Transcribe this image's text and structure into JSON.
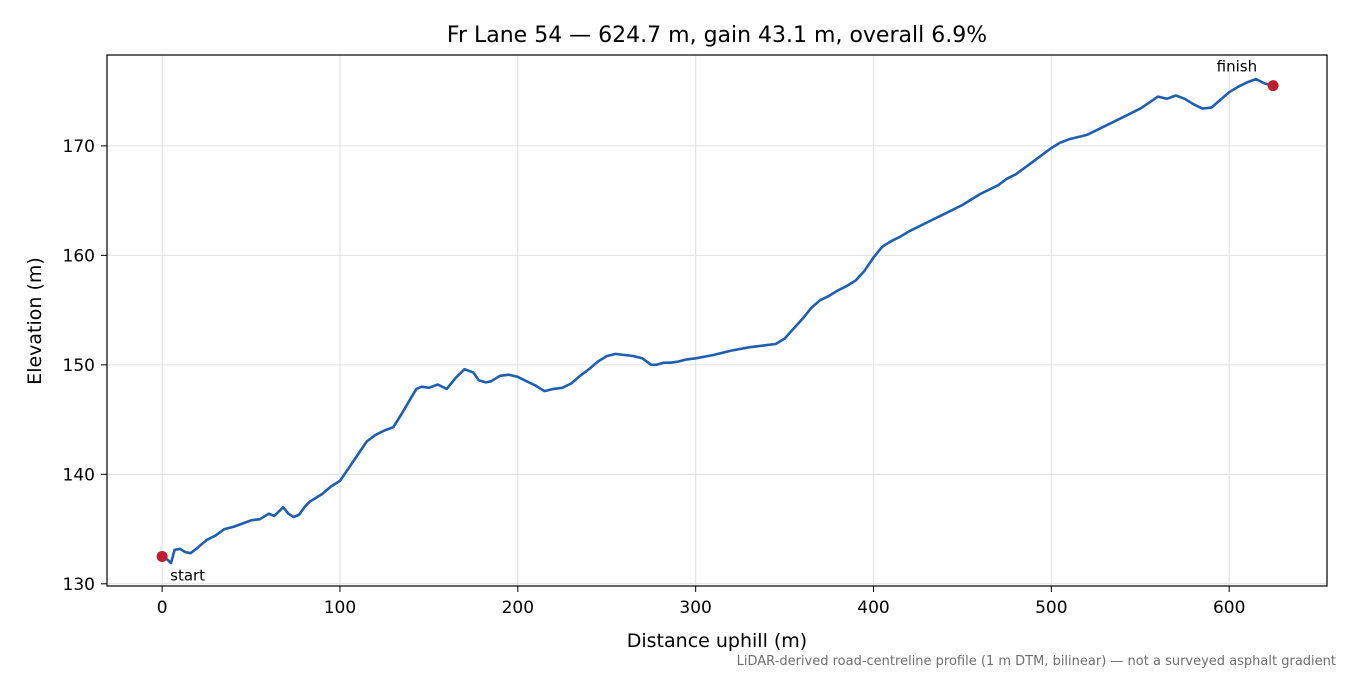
{
  "chart_data": {
    "type": "line",
    "title": "Fr Lane 54 — 624.7 m, gain 43.1 m, overall 6.9%",
    "xlabel": "Distance uphill (m)",
    "ylabel": "Elevation (m)",
    "xlim": [
      -31,
      655
    ],
    "ylim": [
      129.8,
      178.3
    ],
    "xticks": [
      0,
      100,
      200,
      300,
      400,
      500,
      600
    ],
    "yticks": [
      130,
      140,
      150,
      160,
      170
    ],
    "grid": true,
    "footnote": "LiDAR-derived road-centreline profile (1 m DTM, bilinear) — not a surveyed asphalt gradient",
    "line_color": "#1f5fb0",
    "marker_color": "#be1e2d",
    "series": [
      {
        "x": [
          0,
          3,
          5,
          7,
          10,
          13,
          16,
          20,
          25,
          30,
          35,
          40,
          45,
          50,
          55,
          60,
          63,
          65,
          68,
          71,
          74,
          77,
          80,
          83,
          86,
          90,
          95,
          100,
          105,
          110,
          115,
          120,
          125,
          130,
          135,
          140,
          143,
          146,
          150,
          155,
          160,
          165,
          170,
          175,
          178,
          182,
          185,
          190,
          195,
          200,
          205,
          210,
          215,
          220,
          225,
          230,
          235,
          240,
          245,
          250,
          255,
          260,
          265,
          270,
          275,
          278,
          282,
          286,
          290,
          295,
          300,
          310,
          320,
          330,
          340,
          345,
          350,
          355,
          360,
          365,
          370,
          375,
          380,
          385,
          390,
          395,
          400,
          405,
          410,
          415,
          420,
          425,
          430,
          440,
          450,
          460,
          470,
          475,
          480,
          485,
          490,
          495,
          500,
          505,
          510,
          520,
          530,
          540,
          550,
          560,
          565,
          570,
          575,
          580,
          585,
          590,
          595,
          600,
          605,
          610,
          615,
          620,
          624.7
        ],
        "y": [
          132.5,
          132.2,
          131.9,
          133.1,
          133.2,
          132.9,
          132.8,
          133.3,
          134.0,
          134.4,
          135.0,
          135.2,
          135.5,
          135.8,
          135.9,
          136.4,
          136.2,
          136.5,
          137.0,
          136.4,
          136.1,
          136.3,
          137.0,
          137.5,
          137.8,
          138.2,
          138.9,
          139.4,
          140.6,
          141.8,
          143.0,
          143.6,
          144.0,
          144.3,
          145.6,
          147.0,
          147.8,
          148.0,
          147.9,
          148.2,
          147.8,
          148.8,
          149.6,
          149.3,
          148.6,
          148.4,
          148.5,
          149.0,
          149.1,
          148.9,
          148.5,
          148.1,
          147.6,
          147.8,
          147.9,
          148.3,
          149.0,
          149.6,
          150.3,
          150.8,
          151.0,
          150.9,
          150.8,
          150.6,
          150.0,
          150.0,
          150.2,
          150.2,
          150.3,
          150.5,
          150.6,
          150.9,
          151.3,
          151.6,
          151.8,
          151.9,
          152.4,
          153.3,
          154.2,
          155.2,
          155.9,
          156.3,
          156.8,
          157.2,
          157.7,
          158.6,
          159.8,
          160.8,
          161.3,
          161.7,
          162.2,
          162.6,
          163.0,
          163.8,
          164.6,
          165.6,
          166.4,
          167.0,
          167.4,
          168.0,
          168.6,
          169.2,
          169.8,
          170.3,
          170.6,
          171.0,
          171.8,
          172.6,
          173.4,
          174.5,
          174.3,
          174.6,
          174.3,
          173.8,
          173.4,
          173.5,
          174.2,
          174.9,
          175.4,
          175.8,
          176.1,
          175.7,
          175.5
        ]
      }
    ],
    "annotations": [
      {
        "text": "start",
        "x": 0,
        "y": 132.5
      },
      {
        "text": "finish",
        "x": 624.7,
        "y": 175.5
      }
    ]
  }
}
